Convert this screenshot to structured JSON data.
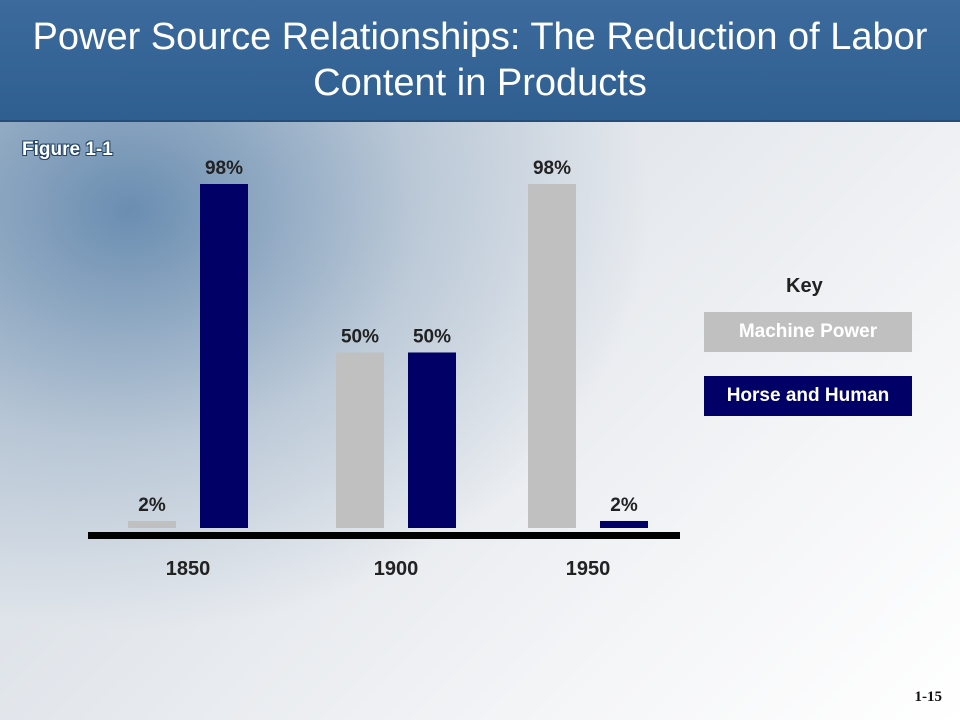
{
  "header": {
    "title": "Power Source Relationships: The Reduction of Labor Content in Products"
  },
  "figure_label": "Figure 1-1",
  "legend": {
    "title": "Key",
    "items": [
      "Machine Power",
      "Horse and Human"
    ]
  },
  "page_number": "1-15",
  "colors": {
    "machine": "#c0c0c0",
    "horse_human": "#000066",
    "header": "#2f5e90"
  },
  "chart_data": {
    "type": "bar",
    "categories": [
      "1850",
      "1900",
      "1950"
    ],
    "series": [
      {
        "name": "Machine Power",
        "values": [
          2,
          50,
          98
        ],
        "labels": [
          "2%",
          "50%",
          "98%"
        ]
      },
      {
        "name": "Horse and Human",
        "values": [
          98,
          50,
          2
        ],
        "labels": [
          "98%",
          "50%",
          "2%"
        ]
      }
    ],
    "ylim": [
      0,
      100
    ],
    "xlabel": "",
    "ylabel": "",
    "grid": false,
    "legend_position": "right"
  }
}
